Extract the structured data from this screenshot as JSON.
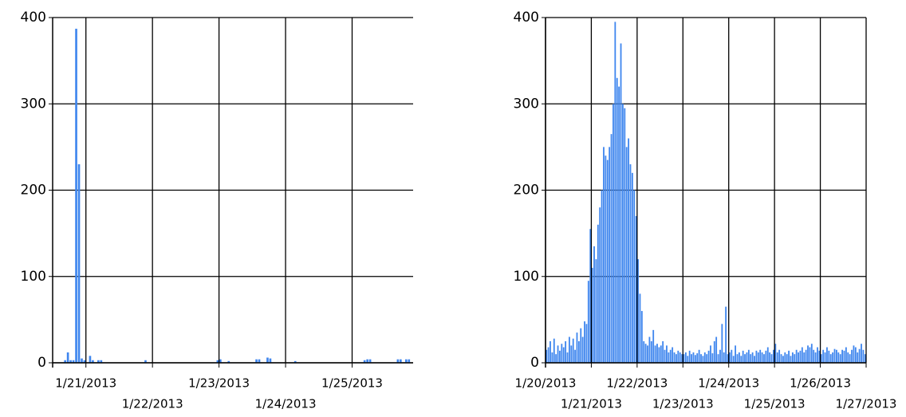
{
  "chart_data": [
    {
      "type": "bar",
      "color": "#3f86ee",
      "ylim": [
        0,
        400
      ],
      "yticks": [
        0,
        100,
        200,
        300,
        400
      ],
      "grid": true,
      "categories": [
        null,
        null,
        null,
        null,
        null,
        null,
        null,
        null,
        null,
        null,
        null,
        null,
        "1/21/2013",
        null,
        null,
        null,
        null,
        null,
        null,
        null,
        null,
        null,
        null,
        null,
        null,
        null,
        null,
        null,
        null,
        null,
        null,
        null,
        null,
        null,
        null,
        null,
        "1/22/2013",
        null,
        null,
        null,
        null,
        null,
        null,
        null,
        null,
        null,
        null,
        null,
        null,
        null,
        null,
        null,
        null,
        null,
        null,
        null,
        null,
        null,
        null,
        null,
        "1/23/2013",
        null,
        null,
        null,
        null,
        null,
        null,
        null,
        null,
        null,
        null,
        null,
        null,
        null,
        null,
        null,
        null,
        null,
        null,
        null,
        null,
        null,
        null,
        null,
        "1/24/2013",
        null,
        null,
        null,
        null,
        null,
        null,
        null,
        null,
        null,
        null,
        null,
        null,
        null,
        null,
        null,
        null,
        null,
        null,
        null,
        null,
        null,
        null,
        null,
        "1/25/2013",
        null,
        null,
        null,
        null,
        null,
        null,
        null,
        null,
        null,
        null,
        null,
        null,
        null,
        null,
        null,
        null,
        null,
        null,
        null,
        null,
        null
      ],
      "values": [
        0,
        0,
        0,
        0,
        3,
        12,
        3,
        3,
        387,
        230,
        5,
        3,
        0,
        8,
        3,
        0,
        3,
        3,
        0,
        0,
        0,
        0,
        0,
        0,
        0,
        0,
        0,
        0,
        0,
        0,
        0,
        0,
        0,
        3,
        0,
        0,
        0,
        0,
        0,
        0,
        0,
        0,
        0,
        0,
        0,
        0,
        0,
        0,
        0,
        0,
        0,
        0,
        0,
        0,
        0,
        0,
        0,
        0,
        0,
        3,
        4,
        0,
        0,
        2,
        0,
        0,
        0,
        0,
        0,
        0,
        0,
        0,
        0,
        4,
        4,
        0,
        0,
        6,
        5,
        0,
        0,
        0,
        0,
        0,
        0,
        0,
        0,
        2,
        0,
        0,
        0,
        0,
        0,
        0,
        0,
        0,
        0,
        0,
        0,
        0,
        0,
        0,
        0,
        0,
        0,
        0,
        0,
        0,
        0,
        0,
        0,
        0,
        3,
        4,
        4,
        0,
        0,
        0,
        0,
        0,
        0,
        0,
        0,
        0,
        4,
        4,
        0,
        4,
        4,
        0
      ]
    },
    {
      "type": "bar",
      "color": "#3f86ee",
      "ylim": [
        0,
        400
      ],
      "yticks": [
        0,
        100,
        200,
        300,
        400
      ],
      "grid": true,
      "categories": [
        "1/20/2013",
        null,
        null,
        null,
        null,
        null,
        null,
        null,
        null,
        null,
        null,
        null,
        null,
        null,
        null,
        null,
        null,
        null,
        null,
        null,
        null,
        null,
        null,
        null,
        "1/21/2013",
        null,
        null,
        null,
        null,
        null,
        null,
        null,
        null,
        null,
        null,
        null,
        null,
        null,
        null,
        null,
        null,
        null,
        null,
        null,
        null,
        null,
        null,
        null,
        "1/22/2013",
        null,
        null,
        null,
        null,
        null,
        null,
        null,
        null,
        null,
        null,
        null,
        null,
        null,
        null,
        null,
        null,
        null,
        null,
        null,
        null,
        null,
        null,
        null,
        "1/23/2013",
        null,
        null,
        null,
        null,
        null,
        null,
        null,
        null,
        null,
        null,
        null,
        null,
        null,
        null,
        null,
        null,
        null,
        null,
        null,
        null,
        null,
        null,
        null,
        "1/24/2013",
        null,
        null,
        null,
        null,
        null,
        null,
        null,
        null,
        null,
        null,
        null,
        null,
        null,
        null,
        null,
        null,
        null,
        null,
        null,
        null,
        null,
        null,
        null,
        "1/25/2013",
        null,
        null,
        null,
        null,
        null,
        null,
        null,
        null,
        null,
        null,
        null,
        null,
        null,
        null,
        null,
        null,
        null,
        null,
        null,
        null,
        null,
        null,
        null,
        "1/26/2013",
        null,
        null,
        null,
        null,
        null,
        null,
        null,
        null,
        null,
        null,
        null,
        null,
        null,
        null,
        null,
        null,
        null,
        null,
        null,
        null,
        null,
        null,
        null,
        "1/27/2013"
      ],
      "values": [
        15,
        18,
        25,
        12,
        28,
        10,
        20,
        14,
        22,
        18,
        25,
        12,
        30,
        20,
        28,
        15,
        35,
        25,
        40,
        30,
        48,
        45,
        95,
        155,
        110,
        135,
        120,
        160,
        180,
        200,
        250,
        240,
        235,
        250,
        265,
        300,
        395,
        330,
        320,
        370,
        300,
        295,
        250,
        260,
        230,
        220,
        200,
        170,
        120,
        80,
        60,
        25,
        22,
        20,
        30,
        25,
        38,
        20,
        22,
        18,
        20,
        25,
        15,
        20,
        12,
        15,
        18,
        12,
        10,
        14,
        12,
        10,
        10,
        12,
        8,
        14,
        10,
        12,
        9,
        11,
        15,
        10,
        8,
        12,
        10,
        14,
        20,
        11,
        25,
        30,
        10,
        15,
        45,
        12,
        65,
        10,
        12,
        15,
        8,
        20,
        10,
        12,
        8,
        14,
        10,
        12,
        15,
        10,
        12,
        8,
        14,
        12,
        15,
        12,
        10,
        14,
        18,
        12,
        10,
        15,
        22,
        12,
        15,
        10,
        8,
        12,
        10,
        14,
        8,
        12,
        10,
        15,
        12,
        14,
        18,
        12,
        15,
        20,
        18,
        22,
        15,
        12,
        18,
        14,
        10,
        15,
        12,
        18,
        14,
        10,
        12,
        16,
        15,
        12,
        10,
        15,
        14,
        18,
        12,
        10,
        15,
        20,
        18,
        12,
        16,
        22,
        15,
        10,
        null
      ]
    }
  ]
}
